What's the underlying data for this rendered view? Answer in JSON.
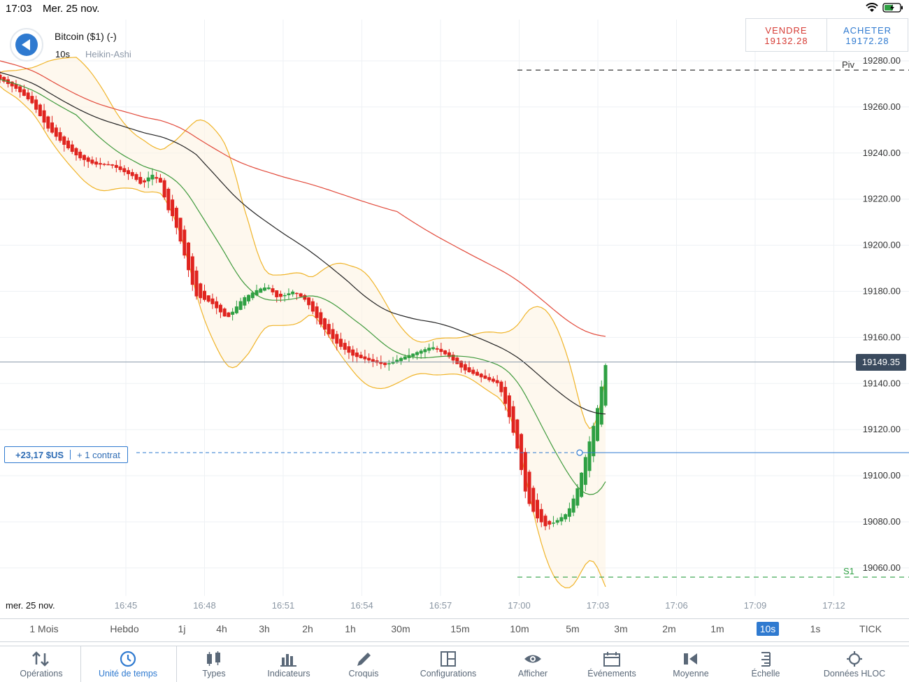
{
  "status_bar": {
    "time": "17:03",
    "date": "Mer. 25 nov."
  },
  "header": {
    "symbol": "Bitcoin ($1) (-)",
    "interval": "10s",
    "chart_type": "Heikin-Ashi"
  },
  "trade": {
    "sell_label": "VENDRE",
    "sell_price": "19132.28",
    "buy_label": "ACHETER",
    "buy_price": "19172.28"
  },
  "position": {
    "pnl": "+23,17 $US",
    "contracts": "+ 1 contrat",
    "entry_price": 19110
  },
  "last_price_tag": "19149.35",
  "colors": {
    "bull": "#2ea043",
    "bear": "#e0241f",
    "ma_red": "#e24a3b",
    "ma_black": "#222222",
    "ma_green": "#3f9a3c",
    "bollinger": "#f0b429",
    "accent": "#2f7ad0"
  },
  "chart_data": {
    "type": "candlestick",
    "x_date_label": "mer. 25 nov.",
    "x_ticks": [
      "16:45",
      "16:48",
      "16:51",
      "16:54",
      "16:57",
      "17:00",
      "17:03",
      "17:06",
      "17:09",
      "17:12"
    ],
    "y_ticks": [
      "19280.00",
      "19260.00",
      "19240.00",
      "19220.00",
      "19200.00",
      "19180.00",
      "19160.00",
      "19140.00",
      "19120.00",
      "19100.00",
      "19080.00",
      "19060.00"
    ],
    "y_range": [
      19045,
      19298
    ],
    "levels": [
      {
        "label": "Piv",
        "value": 19276
      },
      {
        "label": "S1",
        "value": 19056
      }
    ],
    "last_price": 19149.35,
    "close_path": [
      [
        16.45,
        19272
      ],
      [
        16.5,
        19268
      ],
      [
        16.55,
        19262
      ],
      [
        16.6,
        19251
      ],
      [
        16.65,
        19244
      ],
      [
        16.7,
        19238
      ],
      [
        16.75,
        19235
      ],
      [
        16.8,
        19235
      ],
      [
        16.84,
        19232
      ],
      [
        16.87,
        19230
      ],
      [
        16.9,
        19226
      ],
      [
        16.93,
        19231
      ],
      [
        16.96,
        19227
      ],
      [
        16.98,
        19216
      ],
      [
        17.0,
        19212
      ],
      [
        17.03,
        19198
      ],
      [
        17.07,
        19178
      ],
      [
        17.12,
        19175
      ],
      [
        17.17,
        19168
      ],
      [
        17.22,
        19177
      ],
      [
        17.27,
        19181
      ],
      [
        17.3,
        19182
      ],
      [
        17.33,
        19177
      ],
      [
        17.38,
        19180
      ],
      [
        17.42,
        19176
      ],
      [
        17.47,
        19165
      ],
      [
        17.52,
        19157
      ],
      [
        17.57,
        19152
      ],
      [
        17.62,
        19150
      ],
      [
        17.67,
        19148
      ],
      [
        17.72,
        19151
      ],
      [
        17.78,
        19154
      ],
      [
        17.82,
        19156
      ],
      [
        17.87,
        19152
      ],
      [
        17.92,
        19146
      ],
      [
        17.97,
        19143
      ],
      [
        18.03,
        19140
      ],
      [
        18.06,
        19128
      ],
      [
        18.09,
        19112
      ],
      [
        18.12,
        19090
      ],
      [
        18.15,
        19082
      ],
      [
        18.18,
        19078
      ],
      [
        18.21,
        19080
      ],
      [
        18.25,
        19084
      ],
      [
        18.28,
        19094
      ],
      [
        18.31,
        19110
      ],
      [
        18.34,
        19126
      ],
      [
        18.37,
        19148
      ]
    ]
  },
  "timeframes": [
    "1 Mois",
    "Hebdo",
    "1j",
    "4h",
    "3h",
    "2h",
    "1h",
    "30m",
    "15m",
    "10m",
    "5m",
    "3m",
    "2m",
    "1m",
    "10s",
    "1s",
    "TICK"
  ],
  "timeframe_active": "10s",
  "toolbar": [
    "Opérations",
    "Unité de temps",
    "Types",
    "Indicateurs",
    "Croquis",
    "Configurations",
    "Afficher",
    "Événements",
    "Moyenne",
    "Échelle",
    "Données HLOC"
  ]
}
